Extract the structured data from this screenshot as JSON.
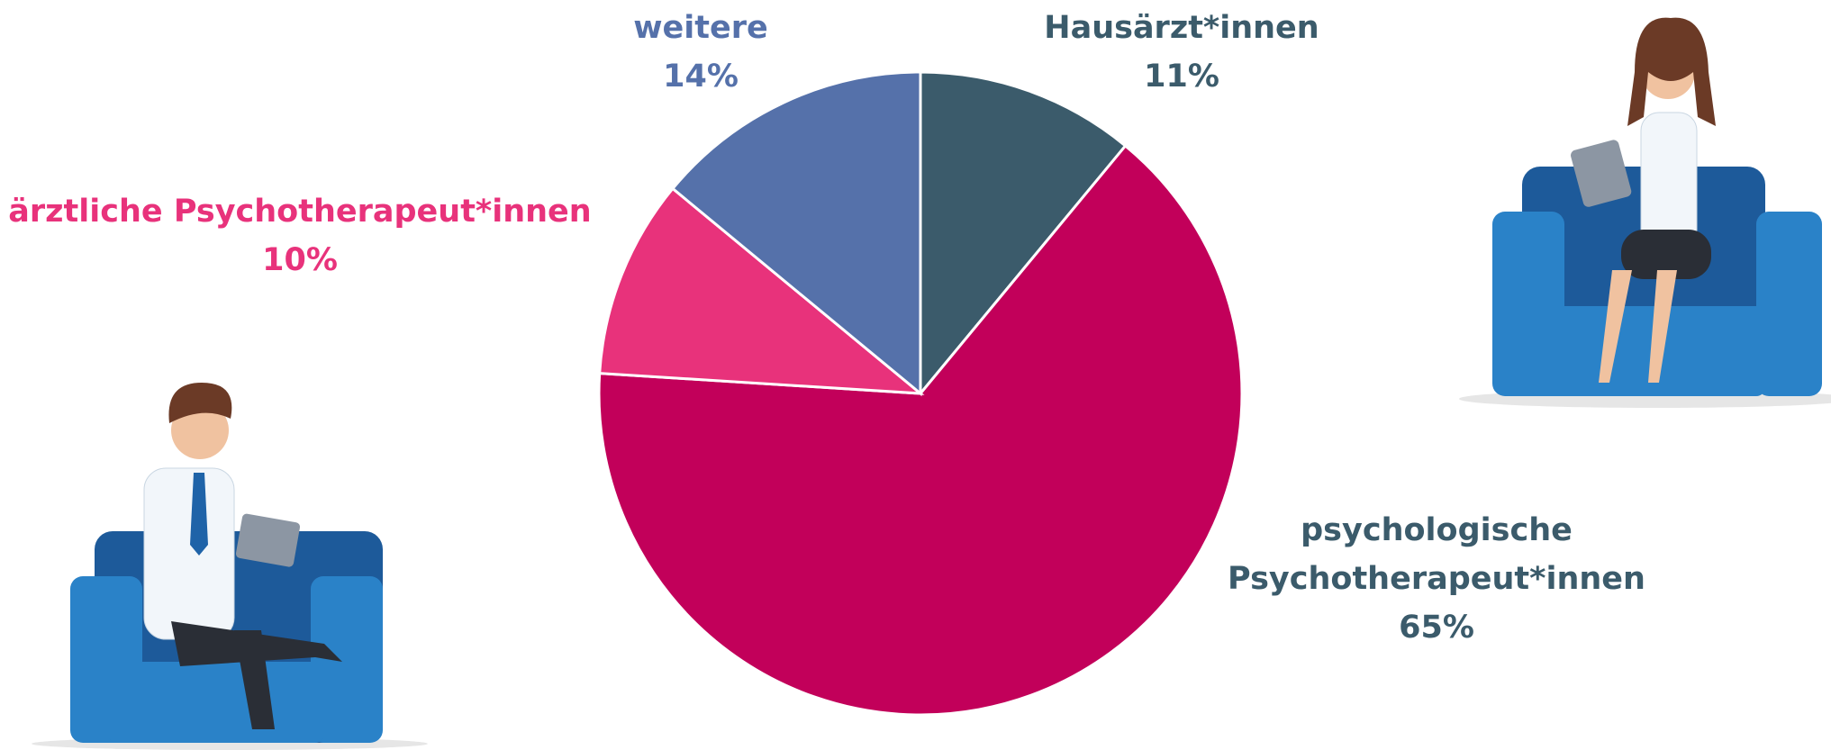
{
  "chart_data": {
    "type": "pie",
    "categories": [
      "Hausärzt*innen",
      "psychologische Psychotherapeut*innen",
      "ärztliche Psychotherapeut*innen",
      "weitere"
    ],
    "values": [
      11,
      65,
      10,
      14
    ],
    "value_labels": [
      "11%",
      "65%",
      "10%",
      "14%"
    ],
    "colors": [
      "#3b5b6b",
      "#c2005a",
      "#e8327b",
      "#5571aa"
    ],
    "label_colors": [
      "#3b5b6b",
      "#3b5b6b",
      "#e8327b",
      "#5571aa"
    ]
  }
}
